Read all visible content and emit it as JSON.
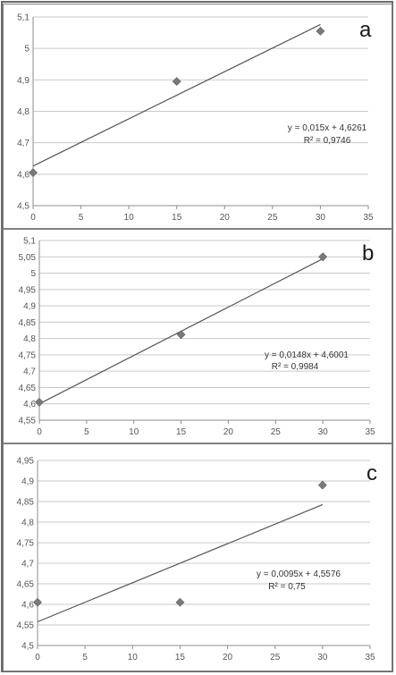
{
  "chart_data": [
    {
      "type": "scatter",
      "panel_label": "a",
      "x": [
        0,
        15,
        30
      ],
      "y": [
        4.605,
        4.895,
        5.055
      ],
      "trendline": {
        "slope": 0.015,
        "intercept": 4.6261
      },
      "equation": "y = 0,015x + 4,6261",
      "r2": "R² = 0,9746",
      "xlim": [
        0,
        35
      ],
      "ylim": [
        4.5,
        5.1
      ],
      "xticks": [
        0,
        5,
        10,
        15,
        20,
        25,
        30,
        35
      ],
      "xtick_labels": [
        "0",
        "5",
        "10",
        "15",
        "20",
        "25",
        "30",
        "35"
      ],
      "yticks": [
        4.5,
        4.6,
        4.7,
        4.8,
        4.9,
        5.0,
        5.1
      ],
      "ytick_labels": [
        "4,5",
        "4,6",
        "4,7",
        "4,8",
        "4,9",
        "5",
        "5,1"
      ],
      "grid": true
    },
    {
      "type": "scatter",
      "panel_label": "b",
      "x": [
        0,
        15,
        30
      ],
      "y": [
        4.605,
        4.812,
        5.05
      ],
      "trendline": {
        "slope": 0.0148,
        "intercept": 4.6001
      },
      "equation": "y = 0,0148x + 4,6001",
      "r2": "R² = 0,9984",
      "xlim": [
        0,
        35
      ],
      "ylim": [
        4.55,
        5.1
      ],
      "xticks": [
        0,
        5,
        10,
        15,
        20,
        25,
        30,
        35
      ],
      "xtick_labels": [
        "0",
        "5",
        "10",
        "15",
        "20",
        "25",
        "30",
        "35"
      ],
      "yticks": [
        4.55,
        4.6,
        4.65,
        4.7,
        4.75,
        4.8,
        4.85,
        4.9,
        4.95,
        5.0,
        5.05,
        5.1
      ],
      "ytick_labels": [
        "4,55",
        "4,6",
        "4,65",
        "4,7",
        "4,75",
        "4,8",
        "4,85",
        "4,9",
        "4,95",
        "5",
        "5,05",
        "5,1"
      ],
      "grid": true
    },
    {
      "type": "scatter",
      "panel_label": "c",
      "x": [
        0,
        15,
        30
      ],
      "y": [
        4.605,
        4.605,
        4.89
      ],
      "trendline": {
        "slope": 0.0095,
        "intercept": 4.5576
      },
      "equation": "y = 0,0095x + 4,5576",
      "r2": "R² = 0,75",
      "xlim": [
        0,
        35
      ],
      "ylim": [
        4.5,
        4.95
      ],
      "xticks": [
        0,
        5,
        10,
        15,
        20,
        25,
        30,
        35
      ],
      "xtick_labels": [
        "0",
        "5",
        "10",
        "15",
        "20",
        "25",
        "30",
        "35"
      ],
      "yticks": [
        4.5,
        4.55,
        4.6,
        4.65,
        4.7,
        4.75,
        4.8,
        4.85,
        4.9,
        4.95
      ],
      "ytick_labels": [
        "4,5",
        "4,55",
        "4,6",
        "4,65",
        "4,7",
        "4,75",
        "4,8",
        "4,85",
        "4,9",
        "4,95"
      ],
      "grid": true
    }
  ],
  "colors": {
    "marker": "#7a7a7a",
    "trendline": "#555555",
    "grid": "#c9c9c9"
  }
}
